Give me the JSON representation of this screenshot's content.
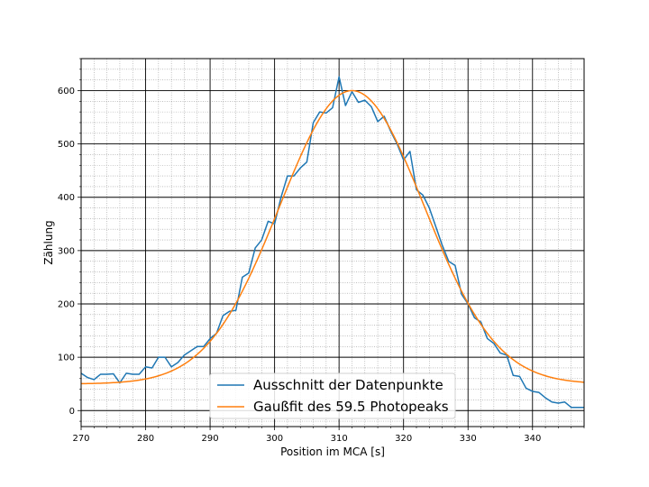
{
  "chart_data": {
    "type": "line",
    "title": "",
    "xlabel": "Position im MCA [s]",
    "ylabel": "Zählung",
    "xlim": [
      270,
      348
    ],
    "ylim": [
      -30,
      660
    ],
    "xticks": [
      270,
      280,
      290,
      300,
      310,
      320,
      330,
      340
    ],
    "yticks": [
      0,
      100,
      200,
      300,
      400,
      500,
      600
    ],
    "grid": {
      "major": true,
      "minor": true
    },
    "legend_position": "bottom-center",
    "series": [
      {
        "name": "Ausschnitt der Datenpunkte",
        "color": "#1f77b4",
        "x": [
          270,
          271,
          272,
          273,
          274,
          275,
          276,
          277,
          278,
          279,
          280,
          281,
          282,
          283,
          284,
          285,
          286,
          287,
          288,
          289,
          290,
          291,
          292,
          293,
          294,
          295,
          296,
          297,
          298,
          299,
          300,
          301,
          302,
          303,
          304,
          305,
          306,
          307,
          308,
          309,
          310,
          311,
          312,
          313,
          314,
          315,
          316,
          317,
          318,
          319,
          320,
          321,
          322,
          323,
          324,
          325,
          326,
          327,
          328,
          329,
          330,
          331,
          332,
          333,
          334,
          335,
          336,
          337,
          338,
          339,
          340,
          341,
          342,
          343,
          344,
          345,
          346,
          347,
          348
        ],
        "y": [
          70,
          62,
          58,
          68,
          68,
          69,
          52,
          70,
          68,
          68,
          82,
          80,
          100,
          100,
          82,
          90,
          104,
          112,
          120,
          120,
          135,
          145,
          178,
          186,
          188,
          250,
          258,
          305,
          320,
          355,
          350,
          400,
          440,
          440,
          455,
          466,
          540,
          560,
          558,
          568,
          626,
          572,
          598,
          578,
          582,
          570,
          542,
          552,
          524,
          500,
          470,
          486,
          414,
          404,
          380,
          345,
          310,
          280,
          272,
          218,
          200,
          174,
          166,
          135,
          126,
          108,
          104,
          66,
          64,
          42,
          36,
          34,
          24,
          16,
          14,
          16,
          6,
          6,
          6
        ]
      },
      {
        "name": "Gaußfit des 59.5 Photopeaks",
        "color": "#ff7f0e",
        "fit": {
          "amplitude": 550,
          "center": 312,
          "sigma": 11.2,
          "offset": 50
        }
      }
    ]
  }
}
